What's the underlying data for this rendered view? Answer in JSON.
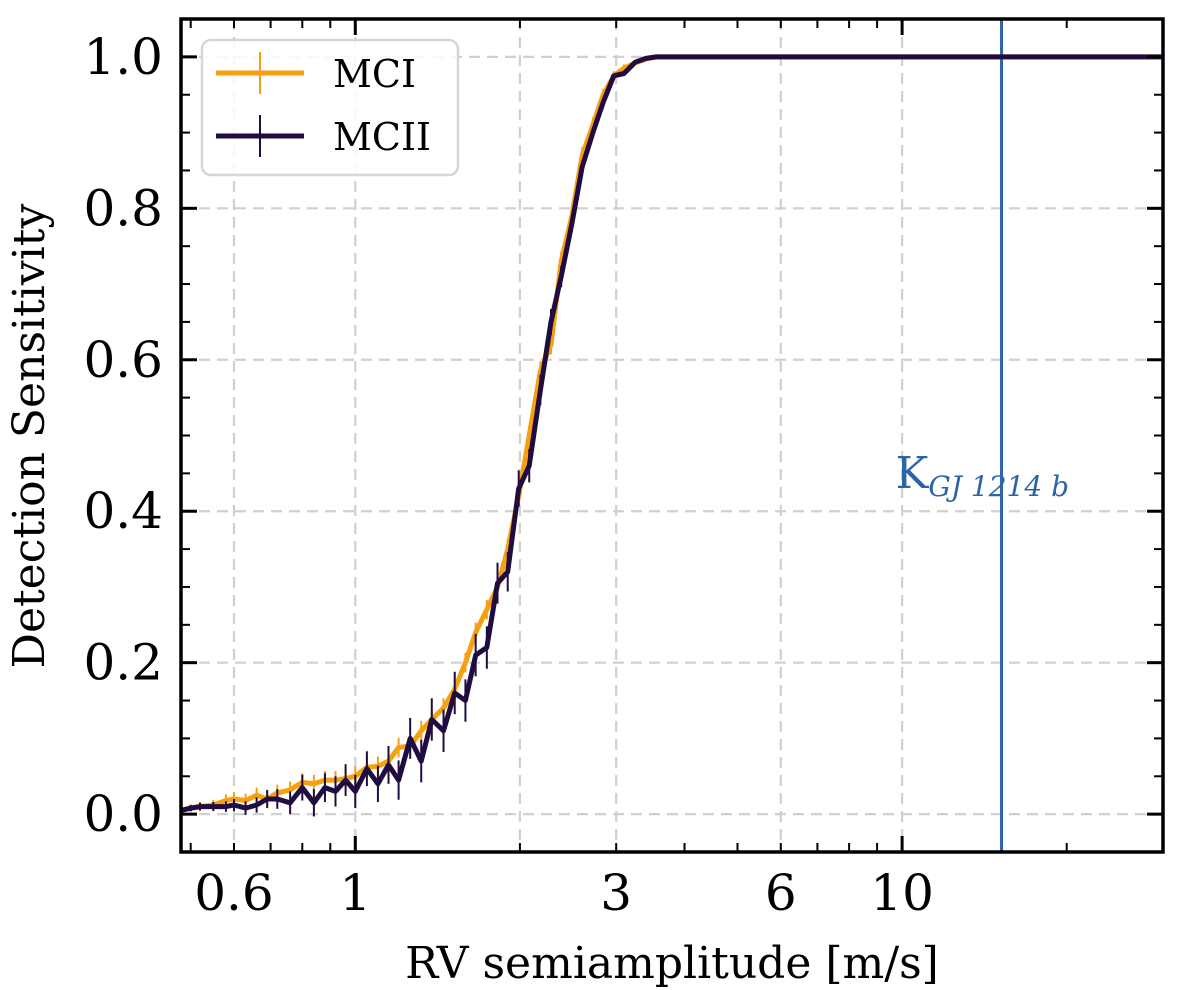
{
  "chart_data": {
    "type": "line",
    "x_scale": "log",
    "title": "",
    "xlabel": "RV semiamplitude [m/s]",
    "ylabel": "Detection Sensitivity",
    "xlim": [
      0.48,
      30
    ],
    "ylim": [
      -0.05,
      1.05
    ],
    "grid": true,
    "legend_position": "top-left",
    "x_ticks": [
      {
        "value": 0.6,
        "label": "0.6"
      },
      {
        "value": 1,
        "label": "1"
      },
      {
        "value": 3,
        "label": "3"
      },
      {
        "value": 6,
        "label": "6"
      },
      {
        "value": 10,
        "label": "10"
      }
    ],
    "y_ticks": [
      {
        "value": 0.0,
        "label": "0.0"
      },
      {
        "value": 0.2,
        "label": "0.2"
      },
      {
        "value": 0.4,
        "label": "0.4"
      },
      {
        "value": 0.6,
        "label": "0.6"
      },
      {
        "value": 0.8,
        "label": "0.8"
      },
      {
        "value": 1.0,
        "label": "1.0"
      }
    ],
    "x_grid": [
      0.6,
      1,
      2,
      3,
      6,
      10
    ],
    "series": [
      {
        "name": "MCI",
        "color": "#f5a00f",
        "x": [
          0.48,
          0.5,
          0.52,
          0.55,
          0.58,
          0.6,
          0.63,
          0.66,
          0.69,
          0.72,
          0.76,
          0.8,
          0.84,
          0.88,
          0.92,
          0.96,
          1.0,
          1.05,
          1.1,
          1.15,
          1.2,
          1.26,
          1.32,
          1.38,
          1.45,
          1.52,
          1.59,
          1.66,
          1.74,
          1.82,
          1.9,
          1.99,
          2.08,
          2.18,
          2.28,
          2.38,
          2.49,
          2.6,
          2.72,
          2.84,
          2.97,
          3.1,
          3.25,
          3.4,
          3.55,
          3.72,
          3.9,
          4.1,
          4.3,
          4.55,
          4.8,
          5.1,
          5.5,
          6.0,
          7.0,
          8.0,
          10.0,
          13.0,
          17.0,
          22.0,
          30.0
        ],
        "y": [
          0.005,
          0.008,
          0.01,
          0.012,
          0.018,
          0.02,
          0.018,
          0.025,
          0.02,
          0.028,
          0.032,
          0.042,
          0.04,
          0.045,
          0.045,
          0.047,
          0.05,
          0.062,
          0.063,
          0.07,
          0.088,
          0.09,
          0.11,
          0.125,
          0.14,
          0.165,
          0.2,
          0.24,
          0.27,
          0.3,
          0.35,
          0.42,
          0.5,
          0.585,
          0.62,
          0.73,
          0.79,
          0.87,
          0.91,
          0.95,
          0.975,
          0.985,
          0.992,
          0.997,
          1.0,
          1.0,
          1.0,
          1.0,
          1.0,
          1.0,
          1.0,
          1.0,
          1.0,
          1.0,
          1.0,
          1.0,
          1.0,
          1.0,
          1.0,
          1.0,
          1.0
        ],
        "yerr": [
          0.005,
          0.005,
          0.006,
          0.007,
          0.008,
          0.009,
          0.009,
          0.01,
          0.01,
          0.011,
          0.011,
          0.012,
          0.012,
          0.012,
          0.012,
          0.012,
          0.013,
          0.013,
          0.013,
          0.013,
          0.013,
          0.013,
          0.013,
          0.013,
          0.013,
          0.013,
          0.013,
          0.013,
          0.013,
          0.013,
          0.013,
          0.013,
          0.013,
          0.013,
          0.013,
          0.013,
          0.012,
          0.011,
          0.01,
          0.008,
          0.006,
          0.005,
          0.003,
          0.002,
          0.001,
          0.001,
          0.001,
          0.0,
          0.0,
          0.0,
          0.0,
          0.0,
          0.0,
          0.0,
          0.0,
          0.0,
          0.0,
          0.0,
          0.0,
          0.0,
          0.0
        ]
      },
      {
        "name": "MCII",
        "color": "#200c40",
        "x": [
          0.48,
          0.5,
          0.52,
          0.55,
          0.58,
          0.6,
          0.63,
          0.66,
          0.69,
          0.72,
          0.76,
          0.8,
          0.84,
          0.88,
          0.92,
          0.96,
          1.0,
          1.05,
          1.1,
          1.15,
          1.2,
          1.26,
          1.32,
          1.38,
          1.45,
          1.52,
          1.59,
          1.66,
          1.74,
          1.82,
          1.9,
          1.99,
          2.08,
          2.18,
          2.28,
          2.38,
          2.49,
          2.6,
          2.72,
          2.84,
          2.97,
          3.1,
          3.25,
          3.4,
          3.55,
          3.72,
          3.9,
          4.1,
          4.3,
          4.55,
          4.8,
          5.1,
          5.5,
          6.0,
          7.0,
          8.0,
          10.0,
          13.0,
          17.0,
          22.0,
          30.0
        ],
        "y": [
          0.005,
          0.008,
          0.01,
          0.01,
          0.01,
          0.012,
          0.008,
          0.012,
          0.02,
          0.02,
          0.015,
          0.035,
          0.015,
          0.035,
          0.03,
          0.045,
          0.03,
          0.06,
          0.04,
          0.065,
          0.045,
          0.1,
          0.07,
          0.125,
          0.11,
          0.16,
          0.15,
          0.21,
          0.22,
          0.305,
          0.32,
          0.43,
          0.46,
          0.56,
          0.65,
          0.71,
          0.78,
          0.855,
          0.9,
          0.94,
          0.975,
          0.978,
          0.993,
          0.998,
          1.0,
          1.0,
          1.0,
          1.0,
          1.0,
          1.0,
          1.0,
          1.0,
          1.0,
          1.0,
          1.0,
          1.0,
          1.0,
          1.0,
          1.0,
          1.0,
          1.0
        ],
        "yerr": [
          0.004,
          0.004,
          0.005,
          0.006,
          0.007,
          0.008,
          0.009,
          0.01,
          0.012,
          0.013,
          0.015,
          0.017,
          0.018,
          0.019,
          0.02,
          0.021,
          0.022,
          0.023,
          0.024,
          0.025,
          0.026,
          0.027,
          0.028,
          0.028,
          0.028,
          0.028,
          0.028,
          0.028,
          0.028,
          0.027,
          0.026,
          0.024,
          0.022,
          0.02,
          0.017,
          0.014,
          0.011,
          0.008,
          0.006,
          0.004,
          0.003,
          0.002,
          0.001,
          0.0,
          0.0,
          0.0,
          0.0,
          0.0,
          0.0,
          0.0,
          0.0,
          0.0,
          0.0,
          0.0,
          0.0,
          0.0,
          0.0,
          0.0,
          0.0,
          0.0,
          0.0
        ]
      }
    ],
    "vline": {
      "x": 15.2,
      "color": "#2b64a8",
      "label_main": "K",
      "label_sub": "GJ 1214 b"
    }
  }
}
